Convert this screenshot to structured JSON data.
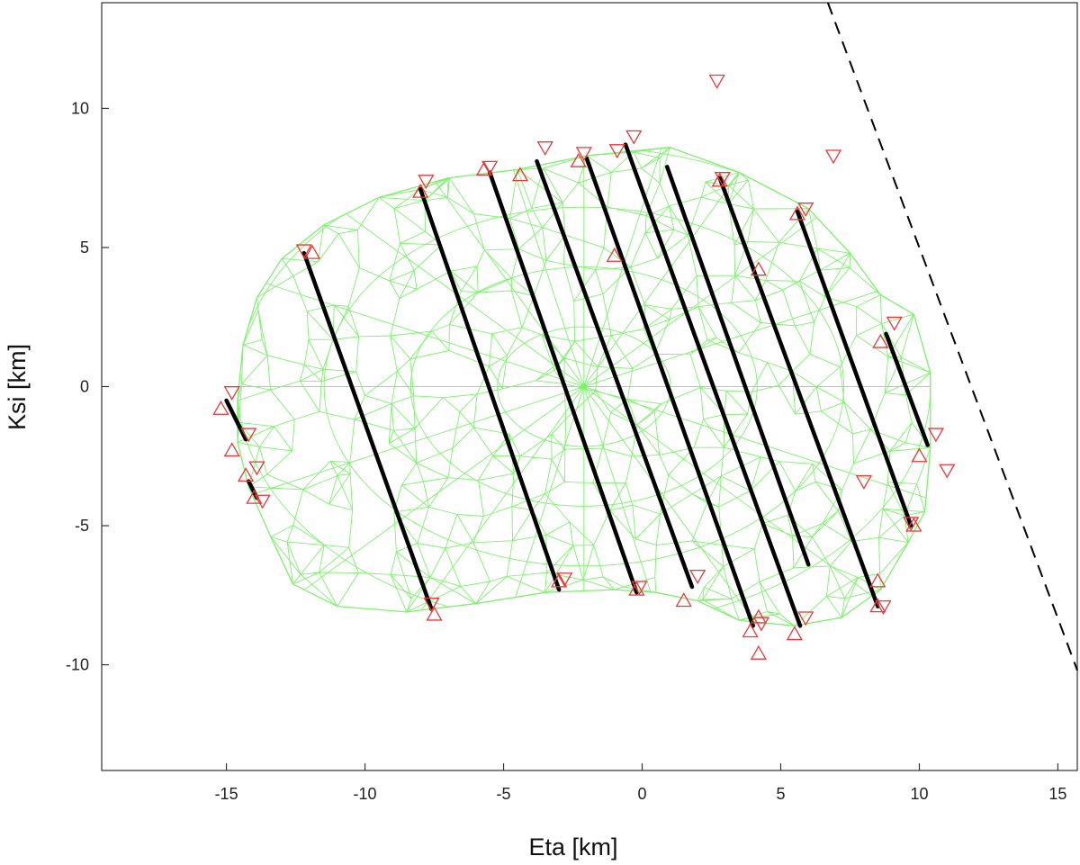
{
  "chart_data": {
    "type": "scatter",
    "title": "",
    "xlabel": "Eta [km]",
    "ylabel": "Ksi [km]",
    "xlim": [
      -19.5,
      15.7
    ],
    "ylim": [
      -13.8,
      13.8
    ],
    "xticks": [
      -15,
      -10,
      -5,
      0,
      5,
      10,
      15
    ],
    "yticks": [
      -10,
      -5,
      0,
      5,
      10
    ],
    "grid": false,
    "colors": {
      "mesh": "#7ef06e",
      "chord": "#000000",
      "marker": "#e8383a",
      "limb": "#000000"
    },
    "shape_outline": [
      [
        -14.6,
        -0.5
      ],
      [
        -14.4,
        1.5
      ],
      [
        -13.9,
        3.2
      ],
      [
        -13,
        4.6
      ],
      [
        -11.5,
        5.8
      ],
      [
        -9.5,
        6.8
      ],
      [
        -7,
        7.5
      ],
      [
        -4.5,
        7.8
      ],
      [
        -2,
        8.3
      ],
      [
        1,
        8.6
      ],
      [
        3.5,
        7.7
      ],
      [
        6,
        6.4
      ],
      [
        7.5,
        4.8
      ],
      [
        8.6,
        3.3
      ],
      [
        9.8,
        2.6
      ],
      [
        10.4,
        0.5
      ],
      [
        10.4,
        -2.2
      ],
      [
        10.2,
        -4.5
      ],
      [
        9.6,
        -5.6
      ],
      [
        8.6,
        -7.3
      ],
      [
        7.2,
        -8.3
      ],
      [
        5.5,
        -8.6
      ],
      [
        3.5,
        -8.4
      ],
      [
        2,
        -7.7
      ],
      [
        0.5,
        -7.4
      ],
      [
        -1,
        -7.3
      ],
      [
        -3.5,
        -7.4
      ],
      [
        -6,
        -7.8
      ],
      [
        -8.5,
        -8.1
      ],
      [
        -11,
        -7.9
      ],
      [
        -12.6,
        -7.1
      ],
      [
        -13.4,
        -5.4
      ],
      [
        -14.2,
        -3.6
      ],
      [
        -14.6,
        -2
      ]
    ],
    "chords": [
      {
        "start": [
          -15,
          -0.5
        ],
        "end": [
          -14.3,
          -1.9
        ]
      },
      {
        "start": [
          -14.2,
          -3.4
        ],
        "end": [
          -13.9,
          -4.0
        ]
      },
      {
        "start": [
          -12.2,
          4.8
        ],
        "end": [
          -7.6,
          -8.0
        ]
      },
      {
        "start": [
          -8.0,
          7.1
        ],
        "end": [
          -3.0,
          -7.3
        ]
      },
      {
        "start": [
          -5.5,
          7.7
        ],
        "end": [
          -0.2,
          -7.4
        ]
      },
      {
        "start": [
          -3.8,
          8.1
        ],
        "end": [
          1.8,
          -7.2
        ]
      },
      {
        "start": [
          -2.0,
          8.2
        ],
        "end": [
          4.0,
          -8.6
        ]
      },
      {
        "start": [
          -0.6,
          8.7
        ],
        "end": [
          5.7,
          -8.6
        ]
      },
      {
        "start": [
          0.9,
          7.9
        ],
        "end": [
          6.0,
          -6.4
        ]
      },
      {
        "start": [
          2.8,
          7.5
        ],
        "end": [
          8.5,
          -7.9
        ]
      },
      {
        "start": [
          5.6,
          6.3
        ],
        "end": [
          9.7,
          -5.0
        ]
      },
      {
        "start": [
          8.8,
          1.9
        ],
        "end": [
          10.3,
          -2.1
        ]
      }
    ],
    "limb_line": {
      "start": [
        6.7,
        13.8
      ],
      "end": [
        15.7,
        -10.2
      ]
    },
    "up_markers": [
      [
        -15.2,
        -0.8
      ],
      [
        -14.8,
        -2.3
      ],
      [
        -14.3,
        -3.2
      ],
      [
        -14,
        -4.0
      ],
      [
        -11.9,
        4.8
      ],
      [
        -8,
        7.0
      ],
      [
        -7.5,
        -8.2
      ],
      [
        -5.7,
        7.8
      ],
      [
        -4.4,
        7.6
      ],
      [
        -2.3,
        8.1
      ],
      [
        -3,
        -7.0
      ],
      [
        -1,
        4.7
      ],
      [
        -0.2,
        -7.3
      ],
      [
        1.5,
        -7.7
      ],
      [
        2.8,
        7.4
      ],
      [
        4.2,
        4.2
      ],
      [
        4.2,
        -8.3
      ],
      [
        4.2,
        -9.6
      ],
      [
        5.5,
        -8.9
      ],
      [
        5.6,
        6.2
      ],
      [
        3.9,
        -8.8
      ],
      [
        8.6,
        1.6
      ],
      [
        8.5,
        -7.9
      ],
      [
        8.5,
        -7.0
      ],
      [
        9.8,
        -5.0
      ],
      [
        10,
        -2.5
      ]
    ],
    "down_markers": [
      [
        -14.8,
        -0.2
      ],
      [
        -14.2,
        -1.7
      ],
      [
        -13.9,
        -2.9
      ],
      [
        -13.7,
        -4.1
      ],
      [
        -12.2,
        4.9
      ],
      [
        -7.8,
        7.4
      ],
      [
        -7.6,
        -7.8
      ],
      [
        -5.5,
        7.9
      ],
      [
        -3.5,
        8.6
      ],
      [
        -2.1,
        8.4
      ],
      [
        -2.8,
        -6.9
      ],
      [
        -0.9,
        8.5
      ],
      [
        -0.3,
        9.0
      ],
      [
        -0.1,
        -7.2
      ],
      [
        2,
        -6.8
      ],
      [
        2.7,
        11.0
      ],
      [
        2.9,
        7.5
      ],
      [
        5.9,
        6.4
      ],
      [
        6.9,
        8.3
      ],
      [
        5.9,
        -8.3
      ],
      [
        4.3,
        -8.5
      ],
      [
        8.0,
        -3.4
      ],
      [
        9.1,
        2.3
      ],
      [
        8.7,
        -7.9
      ],
      [
        9.7,
        -4.9
      ],
      [
        10.6,
        -1.7
      ],
      [
        11,
        -3.0
      ]
    ]
  },
  "x_tick_labels": [
    "-15",
    "-10",
    "-5",
    "0",
    "5",
    "10",
    "15"
  ],
  "y_tick_labels": [
    "-10",
    "-5",
    "0",
    "5",
    "10"
  ]
}
